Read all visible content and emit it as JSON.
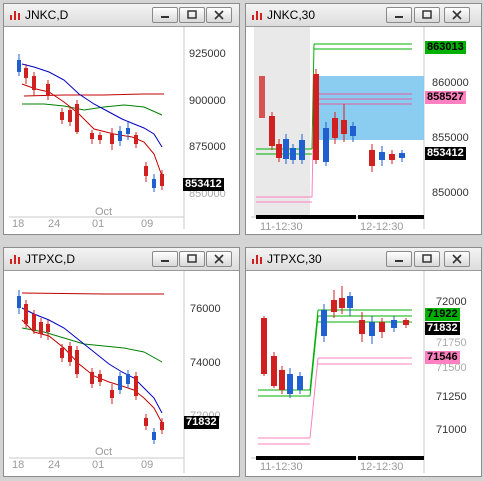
{
  "windows": [
    {
      "title": "JNKC,D",
      "y_labels": [
        "925000",
        "900000",
        "875000",
        "850000"
      ],
      "x_labels": [
        "18",
        "24",
        "Oct",
        "01",
        "09"
      ],
      "last_price": "853412",
      "colors": {
        "last": "#000000"
      }
    },
    {
      "title": "JNKC,30",
      "y_labels": [
        "860000",
        "855000",
        "850000"
      ],
      "x_labels": [
        "11-12:30",
        "12-12:30"
      ],
      "price_tags": [
        {
          "text": "863013",
          "color": "#00b000"
        },
        {
          "text": "858527",
          "color": "#ff80c0"
        },
        {
          "text": "853412",
          "color": "#000000"
        }
      ]
    },
    {
      "title": "JTPXC,D",
      "y_labels": [
        "76000",
        "74000",
        "72000"
      ],
      "x_labels": [
        "18",
        "24",
        "Oct",
        "01",
        "09"
      ],
      "last_price": "71832",
      "colors": {
        "last": "#000000"
      }
    },
    {
      "title": "JTPXC,30",
      "y_labels": [
        "72000",
        "71750",
        "71500",
        "71250",
        "71000"
      ],
      "x_labels": [
        "11-12:30",
        "12-12:30"
      ],
      "price_tags": [
        {
          "text": "71922",
          "color": "#00b000"
        },
        {
          "text": "71832",
          "color": "#000000"
        },
        {
          "text": "71546",
          "color": "#ff80c0"
        }
      ]
    }
  ],
  "window_controls": {
    "minimize": "minimize-icon",
    "restore": "restore-icon",
    "close": "close-icon"
  },
  "colors": {
    "bull": "#1f5fd0",
    "bear": "#d02020",
    "ma_fast": "#0000c0",
    "ma_mid": "#008000",
    "ma_slow": "#c00000",
    "zone": "#7ec8f0"
  }
}
